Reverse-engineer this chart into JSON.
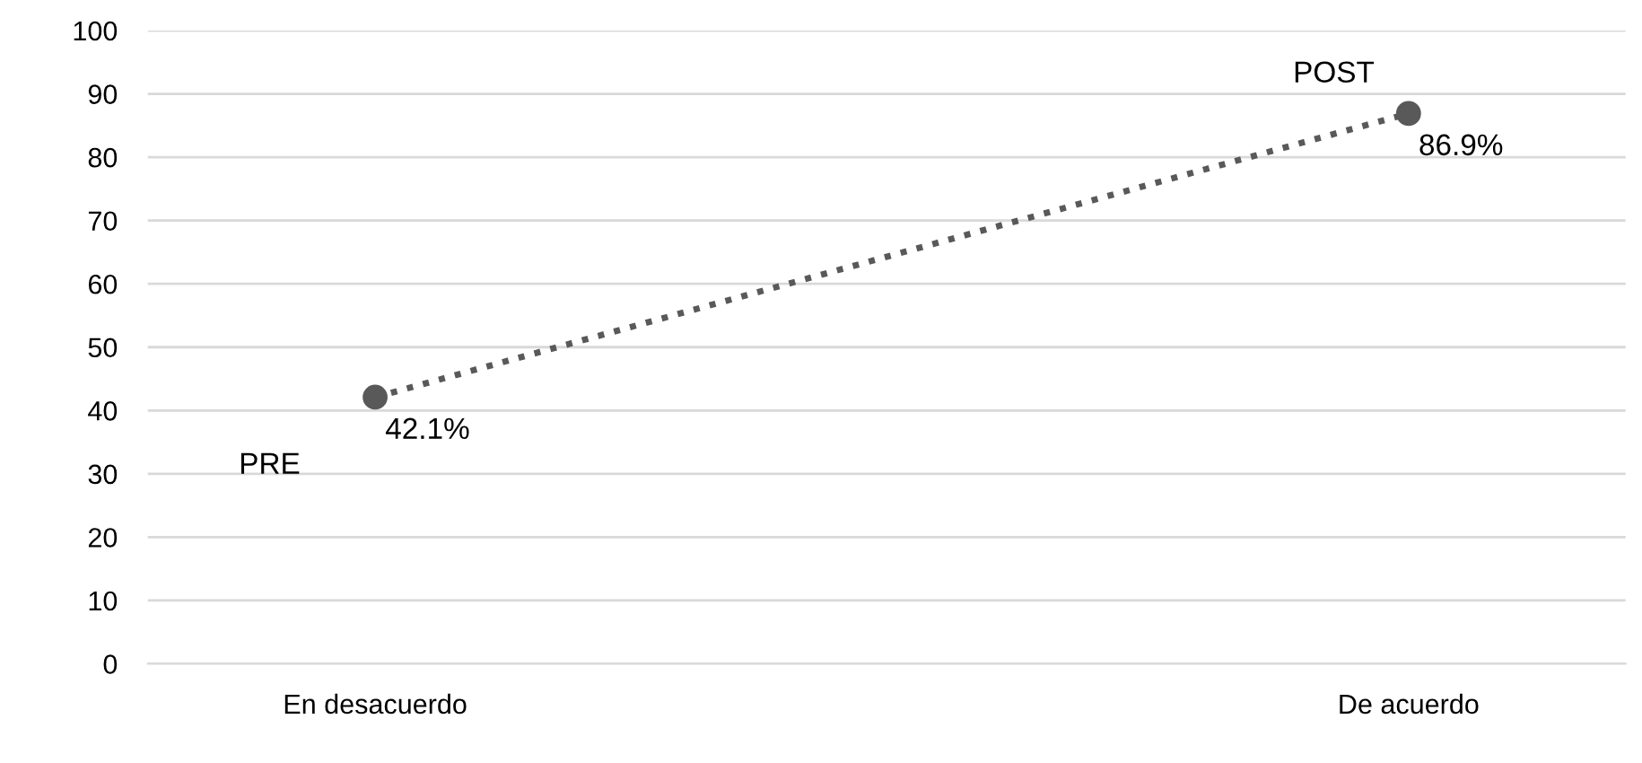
{
  "chart_data": {
    "type": "line",
    "categories": [
      "En desacuerdo",
      "De acuerdo"
    ],
    "series": [
      {
        "color": "#595959",
        "values": [
          42.1,
          86.9
        ],
        "value_labels": [
          "42.1%",
          "86.9%"
        ]
      }
    ],
    "annotations": [
      "PRE",
      "POST"
    ],
    "ylim": [
      0,
      100
    ],
    "yticks": [
      0,
      10,
      20,
      30,
      40,
      50,
      60,
      70,
      80,
      90,
      100
    ],
    "grid": "y",
    "marker": "circle",
    "line_style": "dotted",
    "legend": false
  }
}
